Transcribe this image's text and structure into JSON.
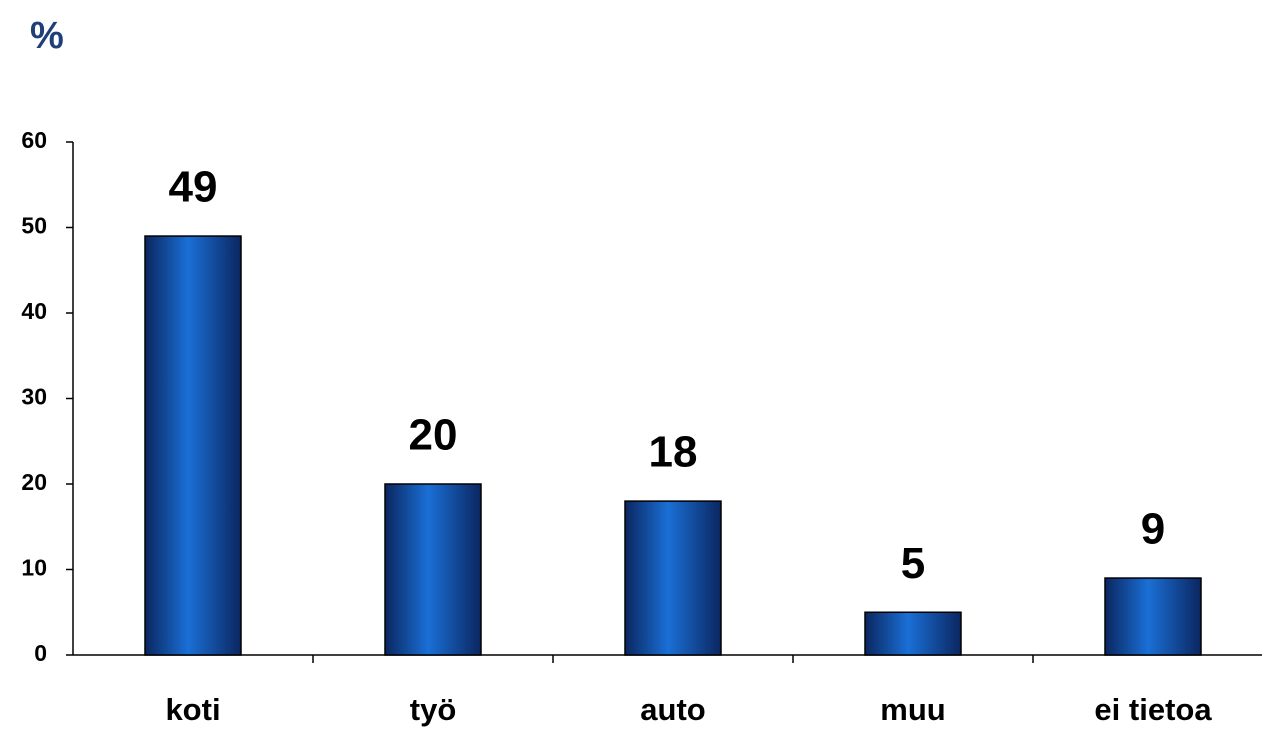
{
  "chart_data": {
    "type": "bar",
    "title": "%",
    "categories": [
      "koti",
      "työ",
      "auto",
      "muu",
      "ei tietoa"
    ],
    "values": [
      49,
      20,
      18,
      5,
      9
    ],
    "color": "#1a6fd6",
    "ylim": [
      0,
      60
    ],
    "yticks": [
      0,
      10,
      20,
      30,
      40,
      50,
      60
    ],
    "grid": false
  }
}
